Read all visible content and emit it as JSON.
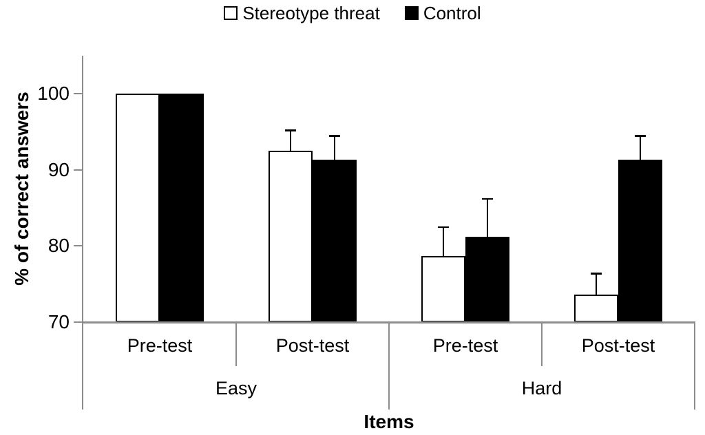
{
  "legend": {
    "items": [
      {
        "label": "Stereotype threat",
        "fill": "#ffffff"
      },
      {
        "label": "Control",
        "fill": "#000000"
      }
    ]
  },
  "chart_data": {
    "type": "bar",
    "title": "",
    "xlabel": "Items",
    "ylabel": "% of correct answers",
    "ylim": [
      70,
      105
    ],
    "yticks": [
      70,
      80,
      90,
      100
    ],
    "grid": false,
    "legend_position": "top",
    "categories": [
      "Pre-test",
      "Post-test",
      "Pre-test",
      "Post-test"
    ],
    "super_categories": [
      {
        "label": "Easy",
        "span": 2
      },
      {
        "label": "Hard",
        "span": 2
      }
    ],
    "series": [
      {
        "name": "Stereotype threat",
        "fill": "#ffffff",
        "border": "#000000",
        "values": [
          100,
          92.5,
          78.7,
          73.6
        ],
        "errors_plus": [
          0,
          2.7,
          3.8,
          2.8
        ]
      },
      {
        "name": "Control",
        "fill": "#000000",
        "border": "#000000",
        "values": [
          100,
          91.3,
          81.2,
          91.3
        ],
        "errors_plus": [
          0,
          3.2,
          5.0,
          3.2
        ]
      }
    ]
  },
  "colors": {
    "axis_line": "#8c8c8c",
    "bar_border": "#000000",
    "error_bar": "#000000",
    "background": "#ffffff"
  }
}
